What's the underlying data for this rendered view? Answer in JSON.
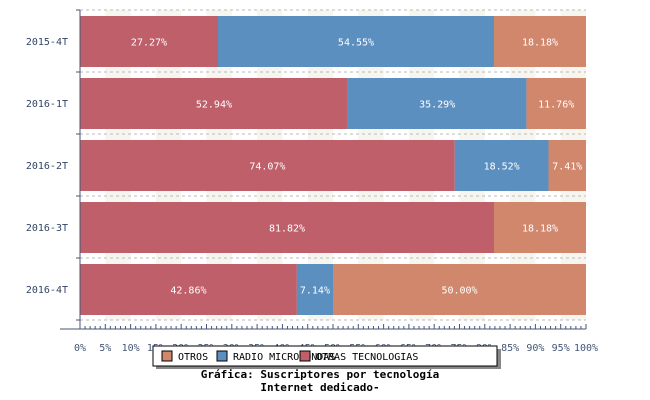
{
  "chart_data": {
    "type": "bar",
    "orientation": "horizontal",
    "stacked": "percent",
    "title": "Gráfica: Suscriptores por tecnología",
    "subtitle": "Internet dedicado-",
    "categories": [
      "2015-4T",
      "2016-1T",
      "2016-2T",
      "2016-3T",
      "2016-4T"
    ],
    "series": [
      {
        "name": "OTRAS TECNOLOGIAS",
        "color": "#BE5F6A",
        "values": [
          27.27,
          52.94,
          74.07,
          81.82,
          42.86
        ],
        "labels": [
          "27.27%",
          "52.94%",
          "74.07%",
          "81.82%",
          "42.86%"
        ]
      },
      {
        "name": "RADIO MICRO-ONDAS",
        "color": "#5B8FC0",
        "values": [
          54.55,
          35.29,
          18.52,
          0,
          7.14
        ],
        "labels": [
          "54.55%",
          "35.29%",
          "18.52%",
          "",
          "7.14%"
        ]
      },
      {
        "name": "OTROS",
        "color": "#D0876C",
        "values": [
          18.18,
          11.76,
          7.41,
          18.18,
          50.0
        ],
        "labels": [
          "18.18%",
          "11.76%",
          "7.41%",
          "18.18%",
          "50.00%"
        ]
      }
    ],
    "xticks": [
      "0%",
      "5%",
      "10%",
      "15%",
      "20%",
      "25%",
      "30%",
      "35%",
      "40%",
      "45%",
      "50%",
      "55%",
      "60%",
      "65%",
      "70%",
      "75%",
      "80%",
      "85%",
      "90%",
      "95%",
      "100%"
    ],
    "xlim": [
      0,
      100
    ],
    "legend": {
      "placement": "bottom",
      "order": [
        "OTROS",
        "RADIO MICRO-ONDAS",
        "OTRAS TECNOLOGIAS"
      ]
    }
  }
}
